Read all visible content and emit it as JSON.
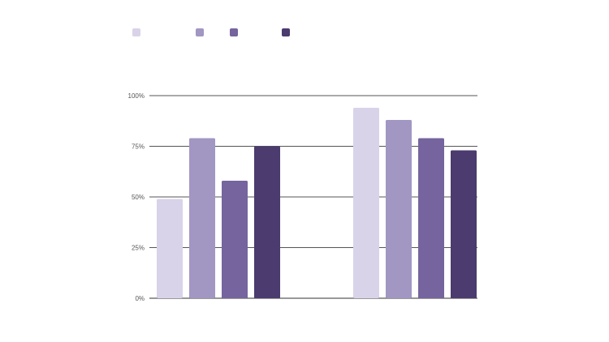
{
  "chart_data": {
    "type": "bar",
    "categories": [
      "",
      ""
    ],
    "series": [
      {
        "name": "",
        "color": "#d9d3e9",
        "values": [
          49,
          94
        ]
      },
      {
        "name": "",
        "color": "#a296c2",
        "values": [
          79,
          88
        ]
      },
      {
        "name": "",
        "color": "#75649d",
        "values": [
          58,
          79
        ]
      },
      {
        "name": "",
        "color": "#4b3b6e",
        "values": [
          75,
          73
        ]
      }
    ],
    "yticks": [
      {
        "value": 0,
        "label": "0%"
      },
      {
        "value": 25,
        "label": "25%"
      },
      {
        "value": 50,
        "label": "50%"
      },
      {
        "value": 75,
        "label": "75%"
      },
      {
        "value": 100,
        "label": "100%"
      }
    ],
    "ylim": [
      0,
      100
    ],
    "grid": true,
    "legend_position": "top-left",
    "title": "",
    "xlabel": "",
    "ylabel": ""
  }
}
